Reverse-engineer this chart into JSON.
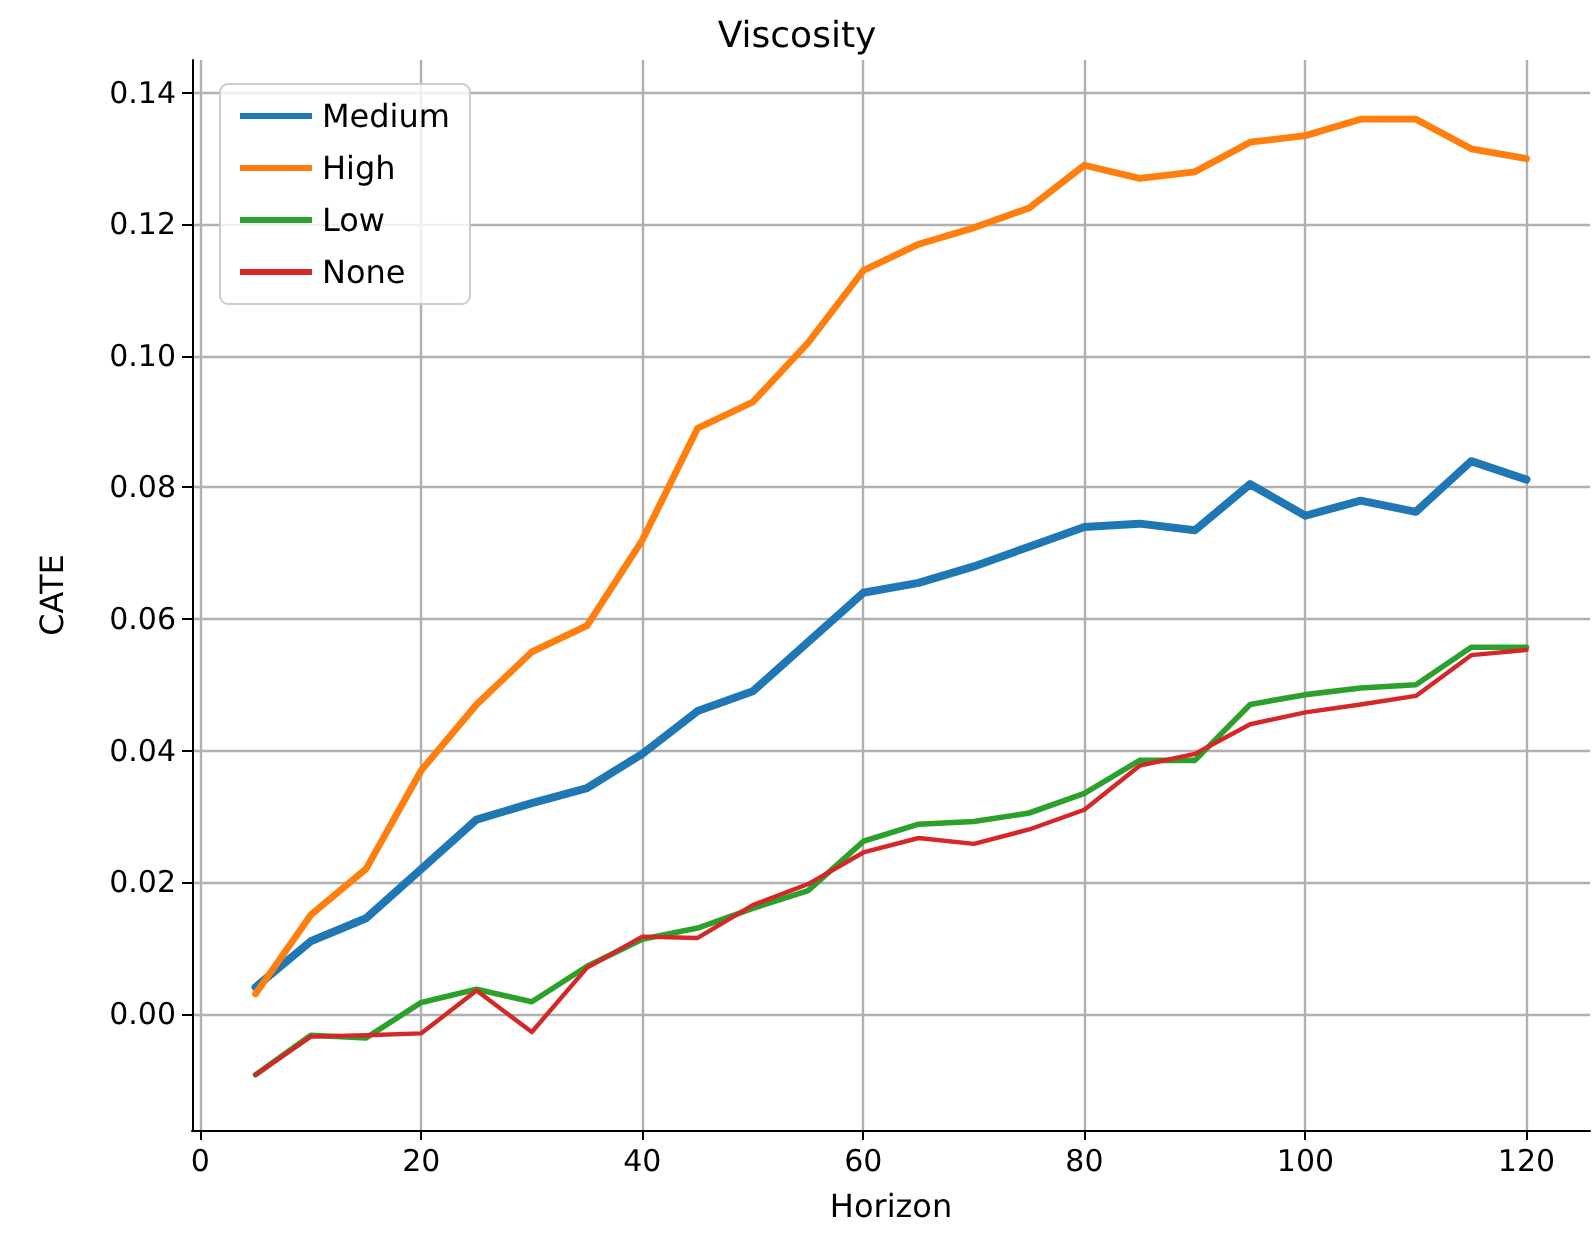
{
  "chart_data": {
    "type": "line",
    "title": "Viscosity",
    "xlabel": "Horizon",
    "ylabel": "CATE",
    "x": [
      5,
      10,
      15,
      20,
      25,
      30,
      35,
      40,
      45,
      50,
      55,
      60,
      65,
      70,
      75,
      80,
      85,
      90,
      95,
      100,
      105,
      110,
      115,
      120
    ],
    "series": [
      {
        "name": "Medium",
        "color": "#1f77b4",
        "values": [
          0.004,
          0.011,
          0.0145,
          0.022,
          0.0295,
          0.032,
          0.0343,
          0.0395,
          0.046,
          0.049,
          0.0565,
          0.064,
          0.0655,
          0.068,
          0.071,
          0.074,
          0.0745,
          0.0735,
          0.0805,
          0.0757,
          0.078,
          0.0763,
          0.084,
          0.0812
        ]
      },
      {
        "name": "High",
        "color": "#ff7f0e",
        "values": [
          0.003,
          0.015,
          0.022,
          0.037,
          0.047,
          0.055,
          0.059,
          0.072,
          0.089,
          0.093,
          0.102,
          0.113,
          0.117,
          0.1195,
          0.1225,
          0.129,
          0.127,
          0.128,
          0.1325,
          0.1335,
          0.136,
          0.136,
          0.1315,
          0.13
        ]
      },
      {
        "name": "Low",
        "color": "#2ca02c",
        "values": [
          -0.0093,
          -0.0033,
          -0.0037,
          0.0017,
          0.0037,
          0.0018,
          0.0072,
          0.0113,
          0.013,
          0.016,
          0.0187,
          0.0262,
          0.0288,
          0.0292,
          0.0305,
          0.0335,
          0.0385,
          0.0385,
          0.047,
          0.0485,
          0.0495,
          0.05,
          0.0557,
          0.0557
        ]
      },
      {
        "name": "None",
        "color": "#d62728",
        "values": [
          -0.0093,
          -0.0035,
          -0.0033,
          -0.003,
          0.0035,
          -0.0028,
          0.007,
          0.0117,
          0.0115,
          0.0165,
          0.0197,
          0.0245,
          0.0267,
          0.0258,
          0.028,
          0.031,
          0.0377,
          0.0395,
          0.044,
          0.0458,
          0.047,
          0.0483,
          0.0545,
          0.0553
        ]
      }
    ],
    "xlim": [
      -0.75,
      125.75
    ],
    "xticks": [
      0,
      20,
      40,
      60,
      80,
      100,
      120
    ],
    "ylim": [
      -0.0177,
      0.145
    ],
    "yticks": [
      {
        "value": 0,
        "label": "0.00"
      },
      {
        "value": 0.02,
        "label": "0.02"
      },
      {
        "value": 0.04,
        "label": "0.04"
      },
      {
        "value": 0.06,
        "label": "0.06"
      },
      {
        "value": 0.08,
        "label": "0.08"
      },
      {
        "value": 0.1,
        "label": "0.10"
      },
      {
        "value": 0.12,
        "label": "0.12"
      },
      {
        "value": 0.14,
        "label": "0.14"
      }
    ],
    "grid": true,
    "legend": "top left",
    "marker": "none",
    "line_style": "solid"
  }
}
